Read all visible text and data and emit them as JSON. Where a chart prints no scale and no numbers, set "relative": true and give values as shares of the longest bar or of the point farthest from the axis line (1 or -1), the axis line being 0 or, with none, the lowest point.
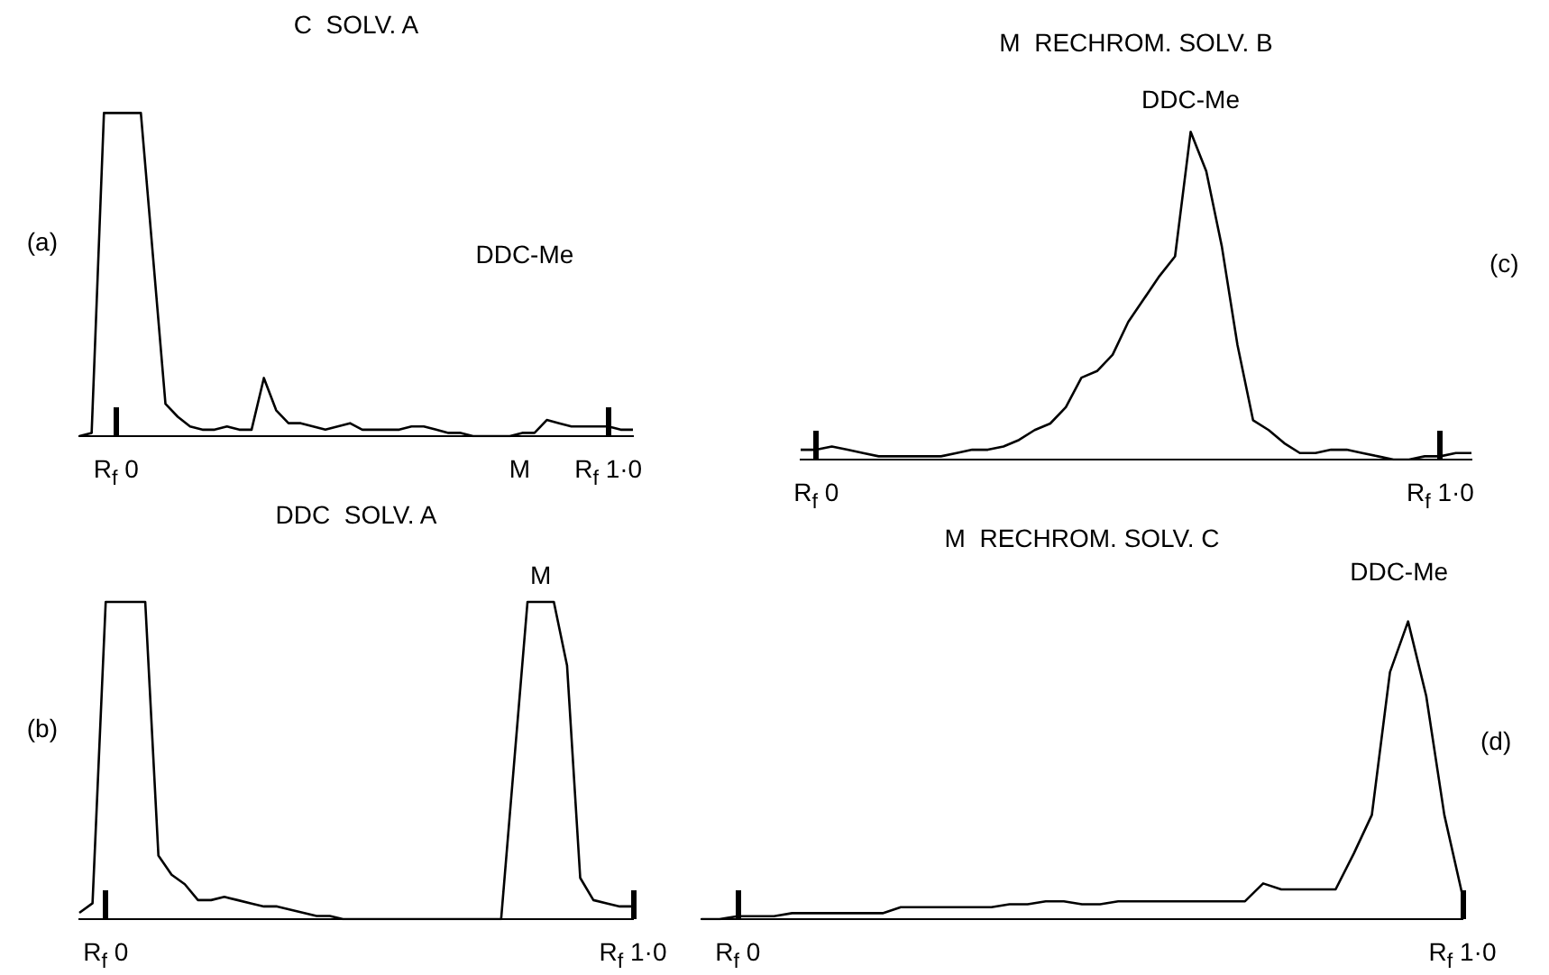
{
  "chart_data": [
    {
      "type": "line",
      "title": "C  SOLV. A",
      "color": "#000000",
      "relative": true,
      "categories": [
        null,
        null,
        null,
        null,
        null,
        null,
        null,
        null,
        null,
        null,
        null,
        null,
        null,
        null,
        null,
        null,
        null,
        null,
        null,
        null,
        null,
        null,
        null,
        null,
        null,
        null,
        null,
        null,
        null,
        null,
        null,
        null,
        null,
        null,
        null,
        null,
        null,
        null,
        null,
        null,
        null,
        null,
        null,
        null,
        null,
        null
      ],
      "values": [
        0,
        0.01,
        1,
        1,
        1,
        1,
        0.55,
        0.1,
        0.06,
        0.03,
        0.02,
        0.02,
        0.03,
        0.02,
        0.02,
        0.18,
        0.08,
        0.04,
        0.04,
        0.03,
        0.02,
        0.03,
        0.04,
        0.02,
        0.02,
        0.02,
        0.02,
        0.03,
        0.03,
        0.02,
        0.01,
        0.01,
        0,
        0,
        0,
        0,
        0.01,
        0.01,
        0.05,
        0.04,
        0.03,
        0.03,
        0.03,
        0.03,
        0.02,
        0.02
      ],
      "annotations": [
        "(a)",
        "R$_{f}$ 0",
        "R$_{f}$ 1·0",
        "DDC-Me",
        "M"
      ]
    },
    {
      "type": "line",
      "title": "M  RECHROM. SOLV. B",
      "color": "#000000",
      "relative": true,
      "categories": [
        null,
        null,
        null,
        null,
        null,
        null,
        null,
        null,
        null,
        null,
        null,
        null,
        null,
        null,
        null,
        null,
        null,
        null,
        null,
        null,
        null,
        null,
        null,
        null,
        null,
        null,
        null,
        null,
        null,
        null,
        null,
        null,
        null,
        null,
        null,
        null,
        null,
        null,
        null,
        null,
        null,
        null,
        null,
        null
      ],
      "values": [
        0.03,
        0.03,
        0.04,
        0.03,
        0.02,
        0.01,
        0.01,
        0.01,
        0.01,
        0.01,
        0.02,
        0.03,
        0.03,
        0.04,
        0.06,
        0.09,
        0.11,
        0.16,
        0.25,
        0.27,
        0.32,
        0.42,
        0.49,
        0.56,
        0.62,
        1,
        0.88,
        0.65,
        0.35,
        0.12,
        0.09,
        0.05,
        0.02,
        0.02,
        0.03,
        0.03,
        0.02,
        0.01,
        0,
        0,
        0.01,
        0.01,
        0.02,
        0.02
      ],
      "annotations": [
        "(c)",
        "R$_{f}$ 0",
        "R$_{f}$ 1·0",
        "DDC-Me"
      ]
    },
    {
      "type": "line",
      "title": "DDC  SOLV. A",
      "color": "#000000",
      "relative": true,
      "categories": [
        null,
        null,
        null,
        null,
        null,
        null,
        null,
        null,
        null,
        null,
        null,
        null,
        null,
        null,
        null,
        null,
        null,
        null,
        null,
        null,
        null,
        null,
        null,
        null,
        null,
        null,
        null,
        null,
        null,
        null,
        null,
        null,
        null,
        null,
        null,
        null,
        null,
        null,
        null,
        null,
        null,
        null,
        null
      ],
      "values": [
        0.02,
        0.05,
        1,
        1,
        1,
        1,
        0.2,
        0.14,
        0.11,
        0.06,
        0.06,
        0.07,
        0.06,
        0.05,
        0.04,
        0.04,
        0.03,
        0.02,
        0.01,
        0.01,
        0,
        0,
        0,
        0,
        0,
        0,
        0,
        0,
        0,
        0,
        0,
        0,
        0,
        0.5,
        1,
        1,
        1,
        0.8,
        0.13,
        0.06,
        0.05,
        0.04,
        0.04
      ],
      "annotations": [
        "(b)",
        "R$_{f}$ 0",
        "R$_{f}$ 1·0",
        "M"
      ]
    },
    {
      "type": "line",
      "title": "M  RECHROM. SOLV. C",
      "color": "#000000",
      "relative": true,
      "categories": [
        null,
        null,
        null,
        null,
        null,
        null,
        null,
        null,
        null,
        null,
        null,
        null,
        null,
        null,
        null,
        null,
        null,
        null,
        null,
        null,
        null,
        null,
        null,
        null,
        null,
        null,
        null,
        null,
        null,
        null,
        null,
        null,
        null,
        null,
        null,
        null,
        null,
        null,
        null,
        null,
        null,
        null,
        null
      ],
      "values": [
        0,
        0,
        0.01,
        0.01,
        0.01,
        0.02,
        0.02,
        0.02,
        0.02,
        0.02,
        0.02,
        0.04,
        0.04,
        0.04,
        0.04,
        0.04,
        0.04,
        0.05,
        0.05,
        0.06,
        0.06,
        0.05,
        0.05,
        0.06,
        0.06,
        0.06,
        0.06,
        0.06,
        0.06,
        0.06,
        0.06,
        0.12,
        0.1,
        0.1,
        0.1,
        0.1,
        0.22,
        0.35,
        0.83,
        1,
        0.75,
        0.35,
        0.08
      ],
      "annotations": [
        "(d)",
        "R$_{f}$ 0",
        "R$_{f}$ 1·0",
        "DDC-Me"
      ]
    }
  ]
}
